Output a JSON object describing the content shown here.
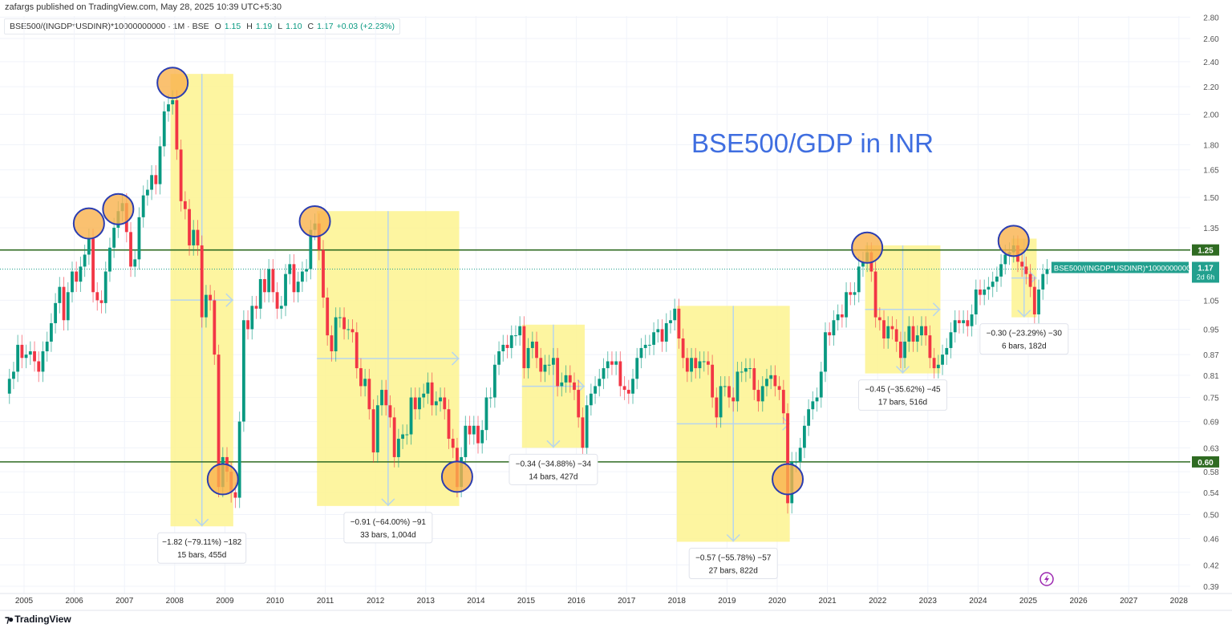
{
  "header": {
    "publisher_line": "zafargs published on TradingView.com, May 28, 2025 10:39 UTC+5:30",
    "symbol": "BSE500/(INGDP*USDINR)*10000000000 · 1M · BSE",
    "open_label": "O",
    "open": "1.15",
    "high_label": "H",
    "high": "1.19",
    "low_label": "L",
    "low": "1.10",
    "close_label": "C",
    "close": "1.17",
    "change": "+0.03 (+2.23%)"
  },
  "footer": {
    "logo_text": "TradingView"
  },
  "colors": {
    "up": "#089981",
    "down": "#f23645",
    "level_line": "#2f6b22",
    "last_price": "#22a08e",
    "title": "#3f6ee0",
    "box": "#fdf38f",
    "marker_fill": "#f9b24c",
    "marker_stroke": "#2b3db0",
    "measure_arrow": "#b7d5ee"
  },
  "chart_data": {
    "type": "candlestick",
    "interval": "1M",
    "title": "BSE500/GDP in INR",
    "y_scale": "log",
    "ylim": [
      0.385,
      2.8
    ],
    "x_range": [
      "2004-09",
      "2028-06"
    ],
    "grid": true,
    "start": "2004-09",
    "first_open": 0.76,
    "closes": [
      0.8,
      0.82,
      0.9,
      0.86,
      0.87,
      0.88,
      0.85,
      0.82,
      0.88,
      0.91,
      0.97,
      1.04,
      1.1,
      0.98,
      1.08,
      1.16,
      1.12,
      1.18,
      1.23,
      1.3,
      1.08,
      1.05,
      1.04,
      1.16,
      1.26,
      1.35,
      1.43,
      1.47,
      1.33,
      1.18,
      1.21,
      1.4,
      1.51,
      1.54,
      1.62,
      1.57,
      1.79,
      2.02,
      2.07,
      2.1,
      1.77,
      1.48,
      1.44,
      1.27,
      1.34,
      1.27,
      0.99,
      1.07,
      1.05,
      0.87,
      0.55,
      0.61,
      0.58,
      0.54,
      0.53,
      0.69,
      0.98,
      0.95,
      1.03,
      1.02,
      1.13,
      1.08,
      1.17,
      1.08,
      1.02,
      1.03,
      1.15,
      1.19,
      1.08,
      1.12,
      1.16,
      1.17,
      1.34,
      1.37,
      1.25,
      1.06,
      0.93,
      0.88,
      0.99,
      0.99,
      0.95,
      0.95,
      0.94,
      0.83,
      0.78,
      0.8,
      0.72,
      0.62,
      0.73,
      0.77,
      0.73,
      0.7,
      0.61,
      0.65,
      0.66,
      0.66,
      0.75,
      0.72,
      0.75,
      0.76,
      0.79,
      0.73,
      0.74,
      0.75,
      0.72,
      0.65,
      0.63,
      0.55,
      0.61,
      0.68,
      0.66,
      0.68,
      0.64,
      0.67,
      0.75,
      0.75,
      0.84,
      0.88,
      0.9,
      0.89,
      0.93,
      0.93,
      0.96,
      0.83,
      0.89,
      0.91,
      0.86,
      0.82,
      0.84,
      0.84,
      0.86,
      0.78,
      0.79,
      0.81,
      0.79,
      0.77,
      0.7,
      0.63,
      0.73,
      0.76,
      0.78,
      0.8,
      0.83,
      0.85,
      0.84,
      0.85,
      0.78,
      0.77,
      0.76,
      0.8,
      0.86,
      0.89,
      0.9,
      0.9,
      0.94,
      0.95,
      0.91,
      0.97,
      0.98,
      1.02,
      0.92,
      0.86,
      0.82,
      0.86,
      0.83,
      0.85,
      0.85,
      0.84,
      0.75,
      0.7,
      0.78,
      0.78,
      0.75,
      0.74,
      0.82,
      0.82,
      0.83,
      0.83,
      0.77,
      0.74,
      0.78,
      0.8,
      0.81,
      0.78,
      0.77,
      0.71,
      0.52,
      0.6,
      0.6,
      0.63,
      0.68,
      0.72,
      0.74,
      0.75,
      0.82,
      0.94,
      0.93,
      0.98,
      1.0,
      0.99,
      1.08,
      1.07,
      1.08,
      1.18,
      1.2,
      1.24,
      1.16,
      0.99,
      0.98,
      0.92,
      0.96,
      0.95,
      0.91,
      0.86,
      0.91,
      0.96,
      0.91,
      0.93,
      0.96,
      0.93,
      0.86,
      0.83,
      0.84,
      0.87,
      0.89,
      0.94,
      0.98,
      0.97,
      0.98,
      0.96,
      1.0,
      1.09,
      1.07,
      1.09,
      1.1,
      1.12,
      1.14,
      1.19,
      1.23,
      1.24,
      1.27,
      1.2,
      1.18,
      1.15,
      1.1,
      1.0,
      1.09,
      1.15,
      1.17
    ],
    "y_ticks": [
      "2.80",
      "2.60",
      "2.40",
      "2.20",
      "2.00",
      "1.80",
      "1.65",
      "1.50",
      "1.35",
      "1.05",
      "0.95",
      "0.87",
      "0.81",
      "0.75",
      "0.69",
      "0.63",
      "0.58",
      "0.54",
      "0.50",
      "0.46",
      "0.42",
      "0.39"
    ],
    "x_ticks": [
      "2005",
      "2006",
      "2007",
      "2008",
      "2009",
      "2010",
      "2011",
      "2012",
      "2013",
      "2014",
      "2015",
      "2016",
      "2017",
      "2018",
      "2019",
      "2020",
      "2021",
      "2022",
      "2023",
      "2024",
      "2025",
      "2026",
      "2027",
      "2028"
    ],
    "horizontal_levels": [
      {
        "value": 1.25,
        "label": "1.25"
      },
      {
        "value": 0.6,
        "label": "0.60"
      }
    ],
    "last_price": {
      "value": 1.17,
      "label": "1.17",
      "countdown": "2d 6h",
      "series_label": "BSE500/(INGDP*USDINR)*10000000000"
    },
    "measurements": [
      {
        "from": "2007-12",
        "to": "2009-03",
        "top": 2.3,
        "bottom": 0.48,
        "line1": "−1.82 (−79.11%) −182",
        "line2": "15 bars, 455d"
      },
      {
        "from": "2010-11",
        "to": "2013-09",
        "top": 1.43,
        "bottom": 0.515,
        "line1": "−0.91 (−64.00%) −91",
        "line2": "33 bars, 1,004d"
      },
      {
        "from": "2014-12",
        "to": "2016-03",
        "top": 0.965,
        "bottom": 0.63,
        "line1": "−0.34 (−34.88%) −34",
        "line2": "14 bars, 427d"
      },
      {
        "from": "2018-01",
        "to": "2020-04",
        "top": 1.03,
        "bottom": 0.455,
        "line1": "−0.57 (−55.78%) −57",
        "line2": "27 bars, 822d"
      },
      {
        "from": "2021-10",
        "to": "2023-04",
        "top": 1.27,
        "bottom": 0.815,
        "line1": "−0.45 (−35.62%) −45",
        "line2": "17 bars, 516d"
      },
      {
        "from": "2024-09",
        "to": "2025-03",
        "top": 1.3,
        "bottom": 0.99,
        "line1": "−0.30 (−23.29%) −30",
        "line2": "6 bars, 182d"
      }
    ],
    "circled_extremes": [
      {
        "date": "2006-04",
        "value": 1.37
      },
      {
        "date": "2006-11",
        "value": 1.44
      },
      {
        "date": "2007-12",
        "value": 2.23
      },
      {
        "date": "2008-12",
        "value": 0.565
      },
      {
        "date": "2010-10",
        "value": 1.38
      },
      {
        "date": "2013-08",
        "value": 0.57
      },
      {
        "date": "2020-03",
        "value": 0.565
      },
      {
        "date": "2021-10",
        "value": 1.26
      },
      {
        "date": "2024-09",
        "value": 1.29
      }
    ]
  },
  "icons": {
    "alert": "lightning-icon",
    "logo": "tradingview-logo"
  }
}
